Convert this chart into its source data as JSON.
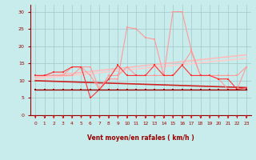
{
  "x": [
    0,
    1,
    2,
    3,
    4,
    5,
    6,
    7,
    8,
    9,
    10,
    11,
    12,
    13,
    14,
    15,
    16,
    17,
    18,
    19,
    20,
    21,
    22,
    23
  ],
  "line_pink_high": [
    11.5,
    11.5,
    11.5,
    11.5,
    11.5,
    14.0,
    14.0,
    7.5,
    10.5,
    10.5,
    25.5,
    25.0,
    22.5,
    22.0,
    11.5,
    30.0,
    30.0,
    19.0,
    11.5,
    11.5,
    10.5,
    7.5,
    7.5,
    14.0
  ],
  "line_pink_low": [
    11.5,
    11.5,
    11.5,
    11.5,
    14.0,
    14.0,
    11.5,
    7.5,
    11.5,
    11.5,
    14.0,
    11.5,
    11.5,
    11.5,
    11.5,
    11.5,
    14.5,
    18.5,
    11.5,
    11.5,
    11.5,
    11.5,
    11.5,
    14.0
  ],
  "line_red_mid": [
    11.5,
    11.5,
    12.5,
    12.5,
    14.0,
    14.0,
    5.0,
    7.5,
    10.5,
    14.5,
    11.5,
    11.5,
    11.5,
    14.5,
    11.5,
    11.5,
    14.5,
    11.5,
    11.5,
    11.5,
    10.5,
    10.5,
    7.5,
    8.0
  ],
  "line_dark": [
    7.5,
    7.5,
    7.5,
    7.5,
    7.5,
    7.5,
    7.5,
    7.5,
    7.5,
    7.5,
    7.5,
    7.5,
    7.5,
    7.5,
    7.5,
    7.5,
    7.5,
    7.5,
    7.5,
    7.5,
    7.5,
    7.5,
    7.5,
    7.5
  ],
  "trend1_x": [
    0,
    23
  ],
  "trend1_y": [
    11.0,
    17.5
  ],
  "trend2_x": [
    0,
    23
  ],
  "trend2_y": [
    10.5,
    16.5
  ],
  "trend3_x": [
    0,
    23
  ],
  "trend3_y": [
    10.0,
    8.0
  ],
  "xlabel": "Vent moyen/en rafales ( km/h )",
  "ylim": [
    0,
    32
  ],
  "xlim": [
    -0.5,
    23.5
  ],
  "yticks": [
    0,
    5,
    10,
    15,
    20,
    25,
    30
  ],
  "xticks": [
    0,
    1,
    2,
    3,
    4,
    5,
    6,
    7,
    8,
    9,
    10,
    11,
    12,
    13,
    14,
    15,
    16,
    17,
    18,
    19,
    20,
    21,
    22,
    23
  ],
  "bg_color": "#c8ecec",
  "grid_color": "#a0c8c8",
  "color_dark": "#990000",
  "color_pink_high": "#ff9999",
  "color_red_mid": "#ff3333",
  "color_trend_pink1": "#ffbbbb",
  "color_trend_pink2": "#ffcccc",
  "color_trend_dark": "#cc2222",
  "arrow_color": "#dd2222"
}
